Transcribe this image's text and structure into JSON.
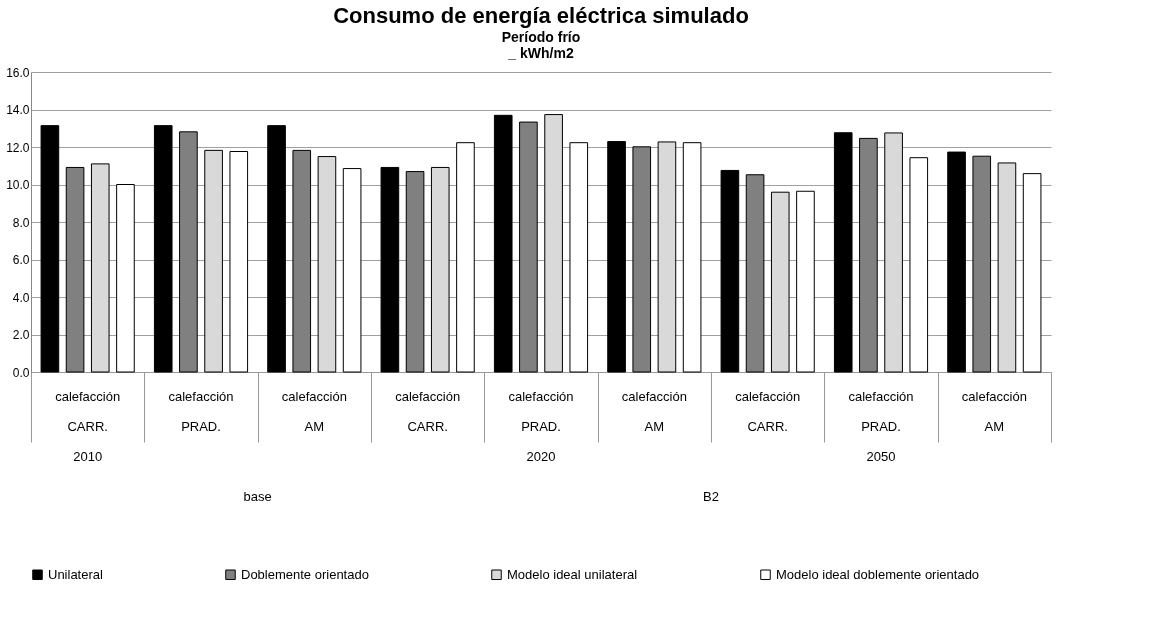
{
  "chart_data": {
    "type": "bar",
    "title": "Consumo de energía eléctrica simulado",
    "subtitle": "Período frío\n_ kWh/m2",
    "categories": [
      "calefacción",
      "calefacción",
      "calefacción",
      "calefacción",
      "calefacción",
      "calefacción",
      "calefacción",
      "calefacción",
      "calefacción"
    ],
    "series": [
      {
        "name": "Unilateral",
        "color": "#000000",
        "values": [
          13.14,
          13.14,
          13.14,
          10.91,
          13.69,
          12.29,
          10.75,
          12.76,
          11.73
        ]
      },
      {
        "name": "Doblemente orientado",
        "color": "#808080",
        "values": [
          10.91,
          12.81,
          11.82,
          10.69,
          13.33,
          12.01,
          10.52,
          12.46,
          11.51
        ]
      },
      {
        "name": "Modelo ideal unilateral",
        "color": "#d9d9d9",
        "values": [
          11.1,
          11.82,
          11.49,
          10.91,
          13.73,
          12.27,
          9.59,
          12.75,
          11.15
        ]
      },
      {
        "name": "Modelo ideal doblemente orientado",
        "color": "#ffffff",
        "values": [
          10.0,
          11.76,
          10.85,
          12.23,
          12.23,
          12.23,
          9.64,
          11.43,
          10.58
        ]
      }
    ],
    "annotations": [
      "CARR.",
      "PRAD.",
      "AM",
      "CARR.",
      "PRAD.",
      "AM",
      "CARR.",
      "PRAD.",
      "AM",
      "2010",
      "2020",
      "2050",
      "base",
      "B2"
    ],
    "ylim": [
      0,
      16
    ],
    "yticks": [
      {
        "value": 0,
        "label": "0.0"
      },
      {
        "value": 2,
        "label": "2.0"
      },
      {
        "value": 4,
        "label": "4.0"
      },
      {
        "value": 6,
        "label": "6.0"
      },
      {
        "value": 8,
        "label": "8.0"
      },
      {
        "value": 10,
        "label": "10.0"
      },
      {
        "value": 12,
        "label": "12.0"
      },
      {
        "value": 14,
        "label": "14.0"
      },
      {
        "value": 16,
        "label": "16.0"
      }
    ],
    "grid": "y",
    "legend": "bottom"
  }
}
